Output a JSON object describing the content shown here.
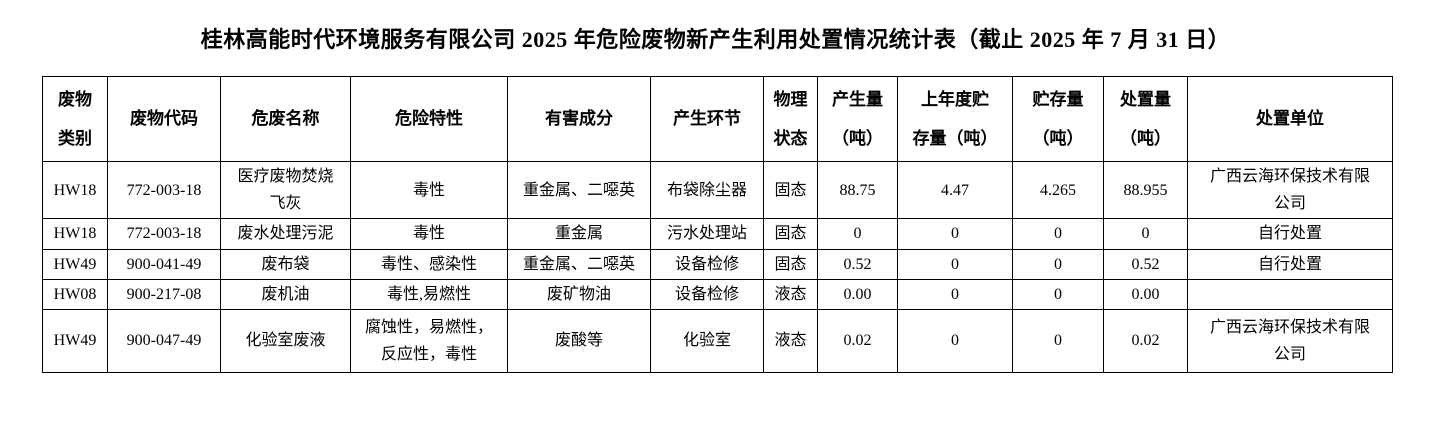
{
  "title": "桂林高能时代环境服务有限公司 2025 年危险废物新产生利用处置情况统计表（截止 2025 年 7 月 31 日）",
  "table": {
    "headers": [
      "废物\n类别",
      "废物代码",
      "危废名称",
      "危险特性",
      "有害成分",
      "产生环节",
      "物理\n状态",
      "产生量\n（吨）",
      "上年度贮\n存量（吨）",
      "贮存量\n（吨）",
      "处置量\n（吨）",
      "处置单位"
    ],
    "rows": [
      [
        "HW18",
        "772-003-18",
        "医疗废物焚烧\n飞灰",
        "毒性",
        "重金属、二噁英",
        "布袋除尘器",
        "固态",
        "88.75",
        "4.47",
        "4.265",
        "88.955",
        "广西云海环保技术有限\n公司"
      ],
      [
        "HW18",
        "772-003-18",
        "废水处理污泥",
        "毒性",
        "重金属",
        "污水处理站",
        "固态",
        "0",
        "0",
        "0",
        "0",
        "自行处置"
      ],
      [
        "HW49",
        "900-041-49",
        "废布袋",
        "毒性、感染性",
        "重金属、二噁英",
        "设备检修",
        "固态",
        "0.52",
        "0",
        "0",
        "0.52",
        "自行处置"
      ],
      [
        "HW08",
        "900-217-08",
        "废机油",
        "毒性,易燃性",
        "废矿物油",
        "设备检修",
        "液态",
        "0.00",
        "0",
        "0",
        "0.00",
        ""
      ],
      [
        "HW49",
        "900-047-49",
        "化验室废液",
        "腐蚀性，易燃性，\n反应性，毒性",
        "废酸等",
        "化验室",
        "液态",
        "0.02",
        "0",
        "0",
        "0.02",
        "广西云海环保技术有限\n公司"
      ]
    ],
    "colors": {
      "border": "#000000",
      "text": "#000000",
      "background": "#ffffff"
    }
  }
}
